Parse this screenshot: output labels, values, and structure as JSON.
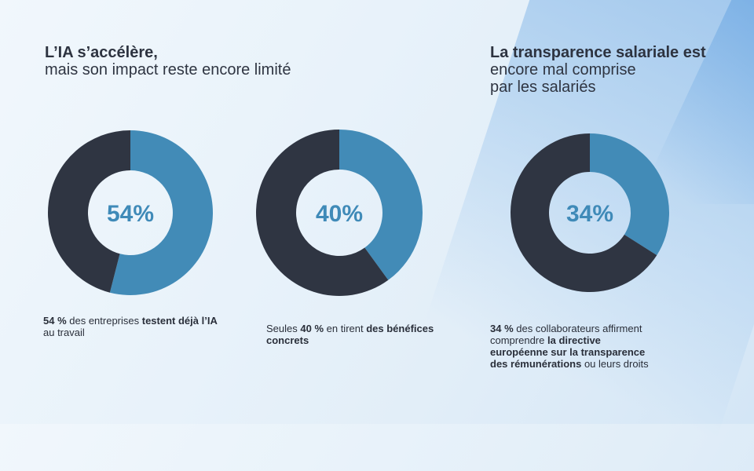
{
  "headings": {
    "left": {
      "strong": "L’IA s’accélère,",
      "light": "mais son impact reste encore limité"
    },
    "right": {
      "strong": "La transparence salariale est",
      "light1": "encore mal comprise",
      "light2": "par les salariés"
    }
  },
  "colors": {
    "highlight": "#428bb7",
    "remainder": "#2f3542",
    "label": "#3f8ab8"
  },
  "chart_data": [
    {
      "type": "pie",
      "values": [
        54,
        46
      ],
      "label": "54%"
    },
    {
      "type": "pie",
      "values": [
        40,
        60
      ],
      "label": "40%"
    },
    {
      "type": "pie",
      "values": [
        34,
        66
      ],
      "label": "34%"
    }
  ],
  "captions": [
    {
      "p1": "54 %",
      "p2": " des entreprises ",
      "p3": "testent déjà l’IA",
      "p4": " au travail"
    },
    {
      "p1": "Seules ",
      "p2": "40 %",
      "p3": " en tirent ",
      "p4": "des bénéfices concrets"
    },
    {
      "p1": "34 %",
      "p2": " des collaborateurs affirment comprendre ",
      "p3": "la directive européenne sur la transparence des rémunérations",
      "p4": " ou leurs droits"
    }
  ]
}
